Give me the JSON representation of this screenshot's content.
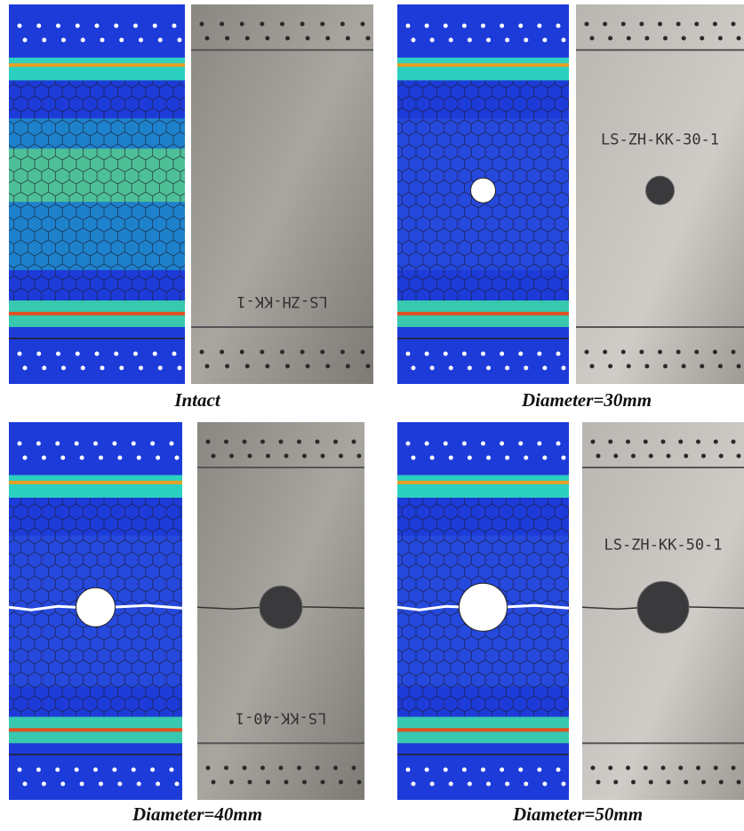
{
  "panels": [
    {
      "caption": "Intact",
      "specimen_label": "LS-ZH-KK-1"
    },
    {
      "caption": "Diameter=30mm",
      "specimen_label": "LS-ZH-KK-30-1"
    },
    {
      "caption": "Diameter=40mm",
      "specimen_label": "LS-KK-40-1"
    },
    {
      "caption": "Diameter=50mm",
      "specimen_label": "LS-ZH-KK-50-1"
    }
  ]
}
